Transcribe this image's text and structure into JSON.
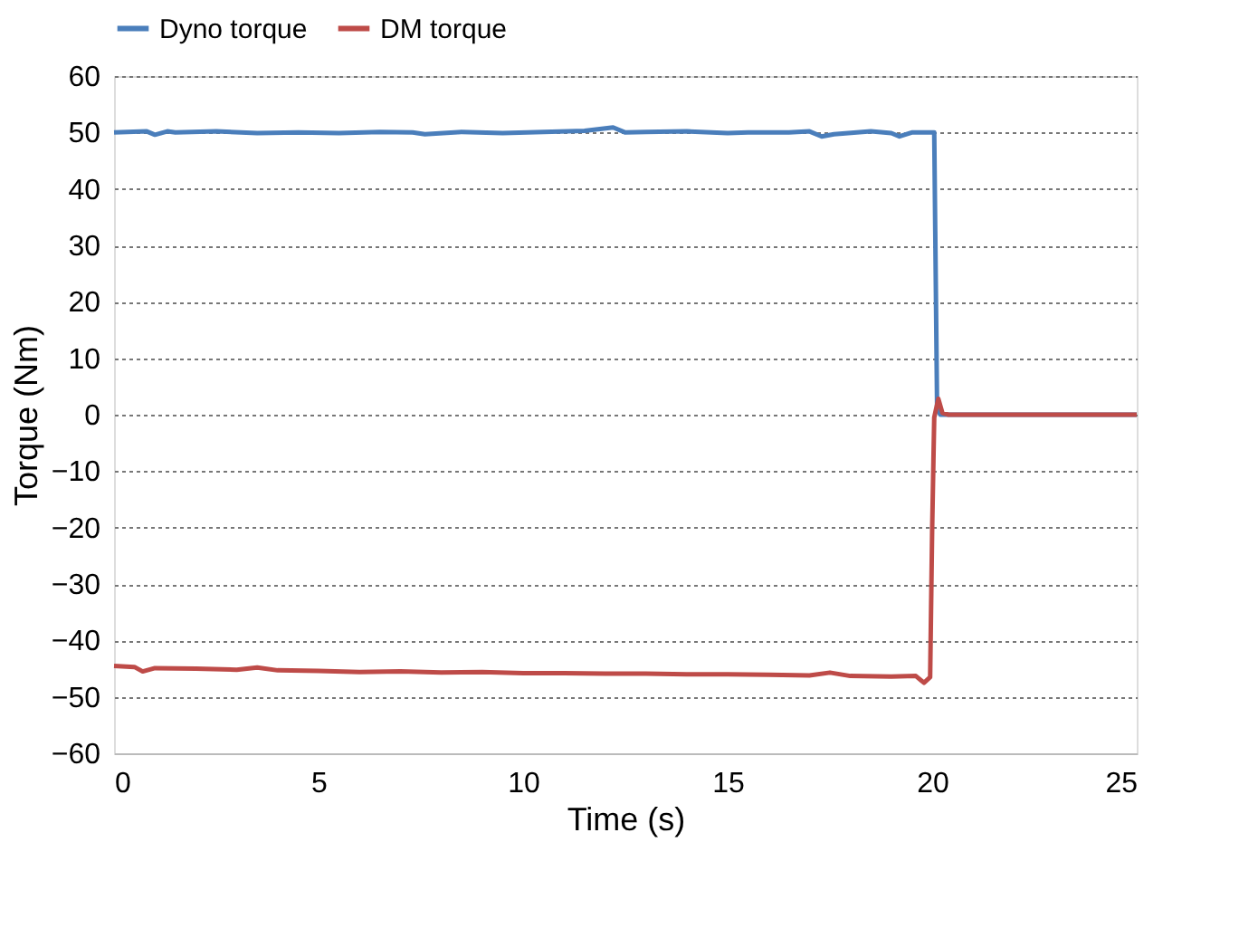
{
  "chart_data": {
    "type": "line",
    "xlabel": "Time (s)",
    "ylabel": "Torque (Nm)",
    "xlim": [
      0,
      25
    ],
    "xticks": [
      0,
      5,
      10,
      15,
      20,
      25
    ],
    "ylim": [
      -60,
      60
    ],
    "yticks": [
      -60,
      -50,
      -40,
      -30,
      -20,
      -10,
      0,
      10,
      20,
      30,
      40,
      50,
      60
    ],
    "grid": "y",
    "legend": "top",
    "marker": "none",
    "line_style": "solid",
    "series": [
      {
        "name": "Dyno torque",
        "color": "#4a7ebb",
        "x": [
          0,
          0.8,
          1.0,
          1.3,
          1.5,
          2.5,
          3.5,
          4.5,
          5.5,
          6.5,
          7.3,
          7.6,
          8.5,
          9.5,
          10.5,
          11.5,
          12.2,
          12.5,
          13.0,
          14.0,
          15.0,
          15.5,
          16.0,
          16.5,
          17.0,
          17.3,
          17.6,
          18.5,
          19.0,
          19.2,
          19.5,
          20.05,
          20.12,
          20.2,
          21,
          25
        ],
        "values": [
          50.0,
          50.2,
          49.6,
          50.2,
          50.0,
          50.2,
          49.9,
          50.0,
          49.9,
          50.1,
          50.0,
          49.7,
          50.1,
          49.9,
          50.1,
          50.3,
          50.9,
          50.0,
          50.1,
          50.2,
          49.9,
          50.0,
          50.0,
          50.0,
          50.2,
          49.3,
          49.7,
          50.2,
          49.9,
          49.3,
          50.0,
          50.0,
          1.0,
          0.0,
          0.0,
          0.0
        ]
      },
      {
        "name": "DM torque",
        "color": "#be4b48",
        "x": [
          0,
          0.5,
          0.7,
          1.0,
          2.0,
          3.0,
          3.5,
          4.0,
          5.0,
          6.0,
          7.0,
          8.0,
          9.0,
          10.0,
          11.0,
          12.0,
          13.0,
          14.0,
          15.0,
          16.0,
          17.0,
          17.5,
          18.0,
          19.0,
          19.6,
          19.8,
          19.95,
          20.0,
          20.05,
          20.15,
          20.25,
          20.4,
          21,
          25
        ],
        "values": [
          -44.5,
          -44.7,
          -45.5,
          -44.9,
          -45.0,
          -45.2,
          -44.8,
          -45.3,
          -45.4,
          -45.6,
          -45.5,
          -45.7,
          -45.6,
          -45.8,
          -45.8,
          -45.9,
          -45.9,
          -46.0,
          -46.0,
          -46.1,
          -46.2,
          -45.7,
          -46.3,
          -46.4,
          -46.3,
          -47.5,
          -46.5,
          -20.0,
          -0.5,
          2.8,
          0.3,
          0.0,
          0.0,
          0.0
        ]
      }
    ]
  }
}
